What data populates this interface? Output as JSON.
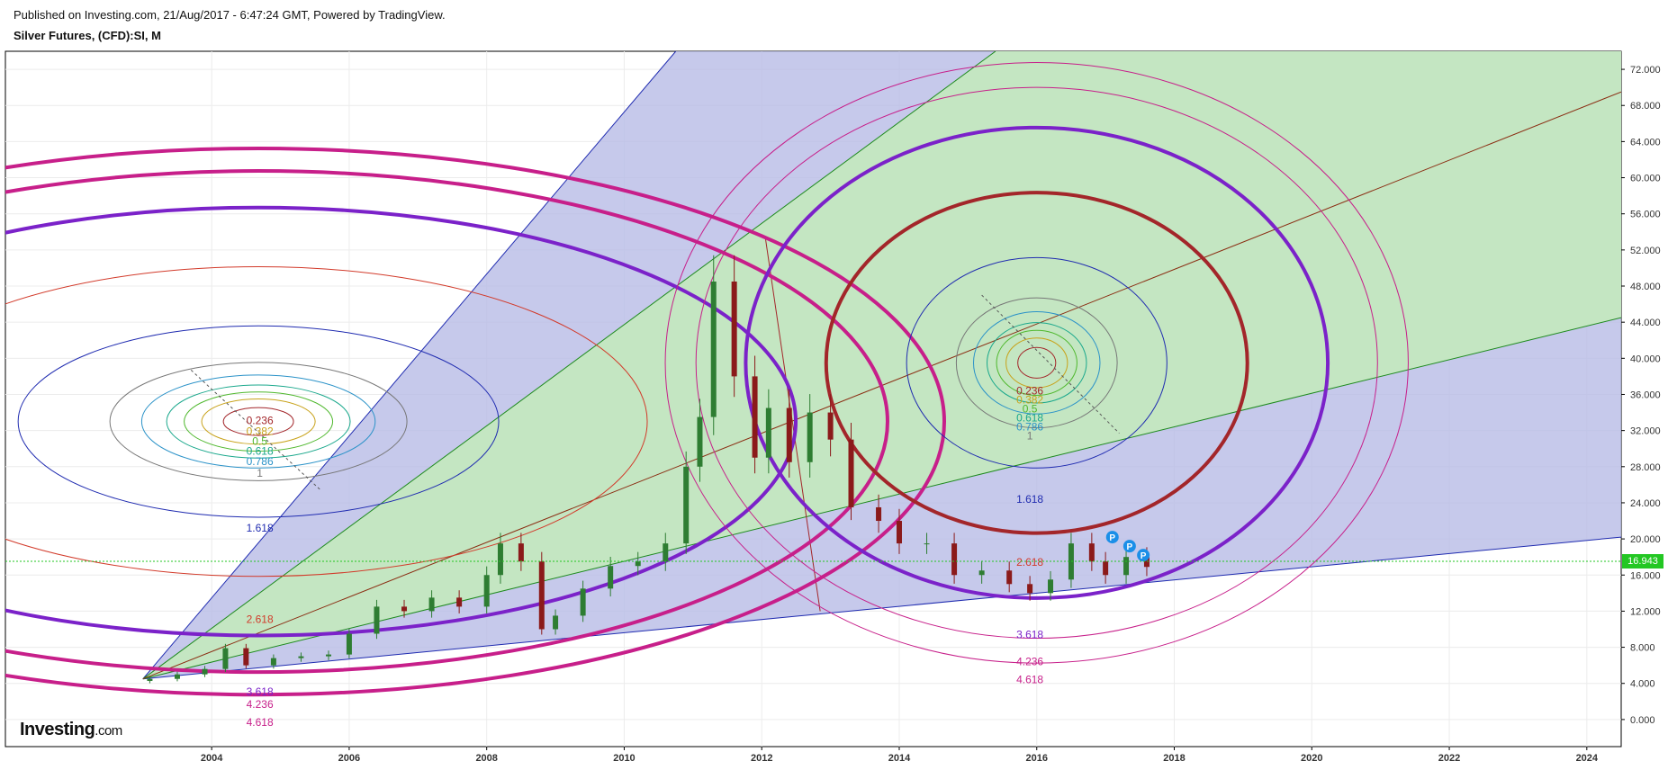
{
  "header": {
    "published": "Published on Investing.com, 21/Aug/2017 - 6:47:24 GMT, Powered by TradingView.",
    "title": "Silver Futures, (CFD):SI, M"
  },
  "logo": {
    "main": "Investing",
    "suffix": ".com"
  },
  "last_price": {
    "label": "16.943",
    "value": 16.943,
    "color": "#23c723"
  },
  "colors": {
    "axis": "#000000",
    "grid": "#ececec",
    "candle_up": "#2e7d32",
    "candle_down": "#8b1a1a",
    "fan_outer_fill": "#b8bbe6",
    "fan_inner_fill": "#c4e8c0",
    "magenta": "#c71f8a",
    "purple": "#7b22c9",
    "brown_red": "#a3262a",
    "blue": "#1f2bb0",
    "green": "#1e8a1e",
    "brown": "#8a2d12"
  },
  "chart_data": {
    "type": "candlestick",
    "title": "Silver Futures, (CFD):SI, M",
    "xlim": [
      2001.0,
      2024.5
    ],
    "ylim": [
      -3.0,
      74.0
    ],
    "x_ticks": [
      "2004",
      "2006",
      "2008",
      "2010",
      "2012",
      "2014",
      "2016",
      "2018",
      "2020",
      "2022",
      "2024"
    ],
    "y_ticks": [
      "72.000",
      "68.000",
      "64.000",
      "60.000",
      "56.000",
      "52.000",
      "48.000",
      "44.000",
      "40.000",
      "36.000",
      "32.000",
      "28.000",
      "24.000",
      "20.000",
      "16.000",
      "12.000",
      "8.000",
      "4.000",
      "0.000"
    ],
    "grid": true,
    "price_series": {
      "name": "SI",
      "points": [
        [
          2003.1,
          4.5
        ],
        [
          2003.5,
          5.0
        ],
        [
          2003.9,
          5.6
        ],
        [
          2004.2,
          7.9
        ],
        [
          2004.5,
          6.0
        ],
        [
          2004.9,
          6.8
        ],
        [
          2005.3,
          7.0
        ],
        [
          2005.7,
          7.2
        ],
        [
          2006.0,
          9.5
        ],
        [
          2006.4,
          12.5
        ],
        [
          2006.8,
          12.0
        ],
        [
          2007.2,
          13.5
        ],
        [
          2007.6,
          12.5
        ],
        [
          2008.0,
          16.0
        ],
        [
          2008.2,
          19.5
        ],
        [
          2008.5,
          17.5
        ],
        [
          2008.8,
          10.0
        ],
        [
          2009.0,
          11.5
        ],
        [
          2009.4,
          14.5
        ],
        [
          2009.8,
          17.0
        ],
        [
          2010.2,
          17.5
        ],
        [
          2010.6,
          19.5
        ],
        [
          2010.9,
          28.0
        ],
        [
          2011.1,
          33.5
        ],
        [
          2011.3,
          48.5
        ],
        [
          2011.6,
          38.0
        ],
        [
          2011.9,
          29.0
        ],
        [
          2012.1,
          34.5
        ],
        [
          2012.4,
          28.5
        ],
        [
          2012.7,
          34.0
        ],
        [
          2013.0,
          31.0
        ],
        [
          2013.3,
          23.5
        ],
        [
          2013.7,
          22.0
        ],
        [
          2014.0,
          19.5
        ],
        [
          2014.4,
          19.5
        ],
        [
          2014.8,
          16.0
        ],
        [
          2015.2,
          16.5
        ],
        [
          2015.6,
          15.0
        ],
        [
          2015.9,
          14.0
        ],
        [
          2016.2,
          15.5
        ],
        [
          2016.5,
          19.5
        ],
        [
          2016.8,
          17.5
        ],
        [
          2017.0,
          16.0
        ],
        [
          2017.3,
          18.0
        ],
        [
          2017.6,
          16.9
        ]
      ]
    },
    "fib_levels": [
      "0.236",
      "0.382",
      "0.5",
      "0.618",
      "0.786",
      "1",
      "1.618",
      "2.618",
      "3.618",
      "4.236",
      "4.618"
    ],
    "markers": [
      "P",
      "P",
      "P"
    ]
  }
}
